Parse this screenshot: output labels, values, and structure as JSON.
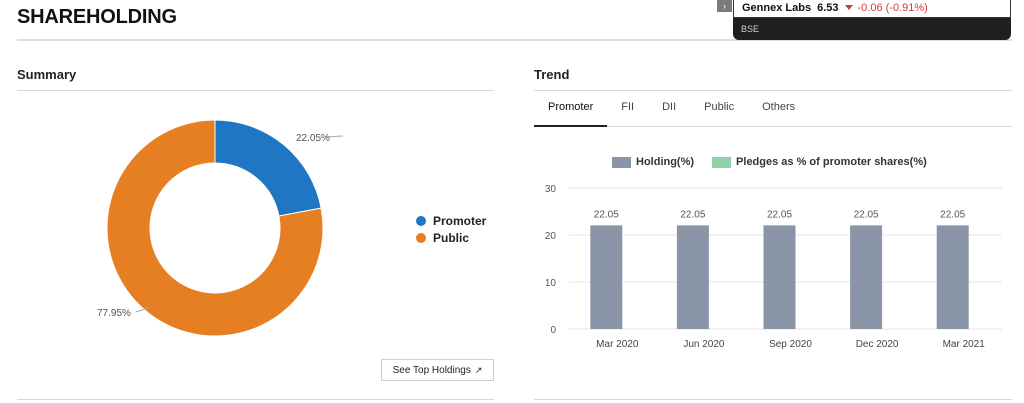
{
  "page": {
    "title": "SHAREHOLDING"
  },
  "ticker": {
    "toggle_glyph": "›",
    "name": "Gennex Labs",
    "price": "6.53",
    "change": "-0.06 (-0.91%)",
    "exchange": "BSE",
    "down_color": "#d23b3b"
  },
  "summary": {
    "heading": "Summary",
    "slice_labels": {
      "promoter": "22.05%",
      "public": "77.95%"
    },
    "legend": [
      {
        "label": "Promoter",
        "color": "#1f77c4"
      },
      {
        "label": "Public",
        "color": "#e67e22"
      }
    ],
    "top_holdings_label": "See Top Holdings",
    "top_holdings_icon": "external-link-icon"
  },
  "trend": {
    "heading": "Trend",
    "tabs": [
      {
        "label": "Promoter",
        "active": true
      },
      {
        "label": "FII",
        "active": false
      },
      {
        "label": "DII",
        "active": false
      },
      {
        "label": "Public",
        "active": false
      },
      {
        "label": "Others",
        "active": false
      }
    ],
    "legend": [
      {
        "label": "Holding(%)",
        "color": "#8a96a8"
      },
      {
        "label": "Pledges as % of promoter shares(%)",
        "color": "#8fd1a8"
      }
    ]
  },
  "chart_data": [
    {
      "type": "pie",
      "variant": "donut",
      "categories": [
        "Promoter",
        "Public"
      ],
      "values": [
        22.05,
        77.95
      ],
      "colors": [
        "#1f77c4",
        "#e67e22"
      ]
    },
    {
      "type": "bar",
      "categories": [
        "Mar 2020",
        "Jun 2020",
        "Sep 2020",
        "Dec 2020",
        "Mar 2021"
      ],
      "series": [
        {
          "name": "Holding(%)",
          "values": [
            22.05,
            22.05,
            22.05,
            22.05,
            22.05
          ],
          "color": "#8a96a8"
        },
        {
          "name": "Pledges as % of promoter shares(%)",
          "values": [
            0,
            0,
            0,
            0,
            0
          ],
          "color": "#8fd1a8"
        }
      ],
      "data_labels": [
        "22.05",
        "22.05",
        "22.05",
        "22.05",
        "22.05"
      ],
      "yticks": [
        0,
        10,
        20,
        30
      ],
      "ylim": [
        0,
        30
      ],
      "grid": true
    }
  ]
}
